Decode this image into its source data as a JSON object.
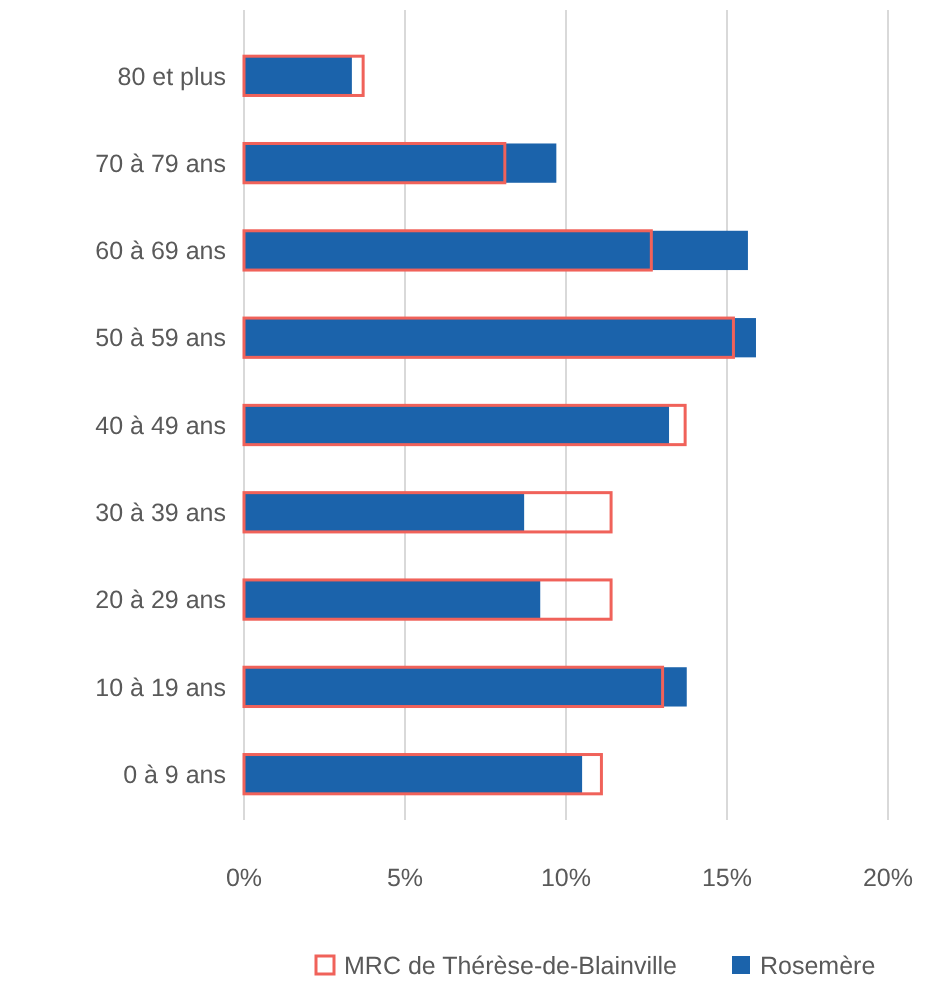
{
  "chart_data": {
    "type": "bar",
    "orientation": "horizontal",
    "categories": [
      "80 et plus",
      "70 à 79 ans",
      "60 à 69 ans",
      "50 à 59 ans",
      "40 à 49 ans",
      "30 à 39 ans",
      "20 à 29 ans",
      "10 à 19 ans",
      "0 à 9 ans"
    ],
    "series": [
      {
        "name": "MRC de Thérèse-de-Blainville",
        "color": "#f0625a",
        "values": [
          3.7,
          8.1,
          12.65,
          15.2,
          13.7,
          11.4,
          11.4,
          13.0,
          11.1
        ]
      },
      {
        "name": "Rosemère",
        "color": "#1b63ab",
        "values": [
          3.35,
          9.7,
          15.65,
          15.9,
          13.2,
          8.7,
          9.2,
          13.75,
          10.5
        ]
      }
    ],
    "xlim": [
      0,
      20
    ],
    "xticks": [
      {
        "value": 0,
        "label": "0%"
      },
      {
        "value": 5,
        "label": "5%"
      },
      {
        "value": 10,
        "label": "10%"
      },
      {
        "value": 15,
        "label": "15%"
      },
      {
        "value": 20,
        "label": "20%"
      }
    ],
    "grid": "x",
    "legend": "bottom"
  }
}
